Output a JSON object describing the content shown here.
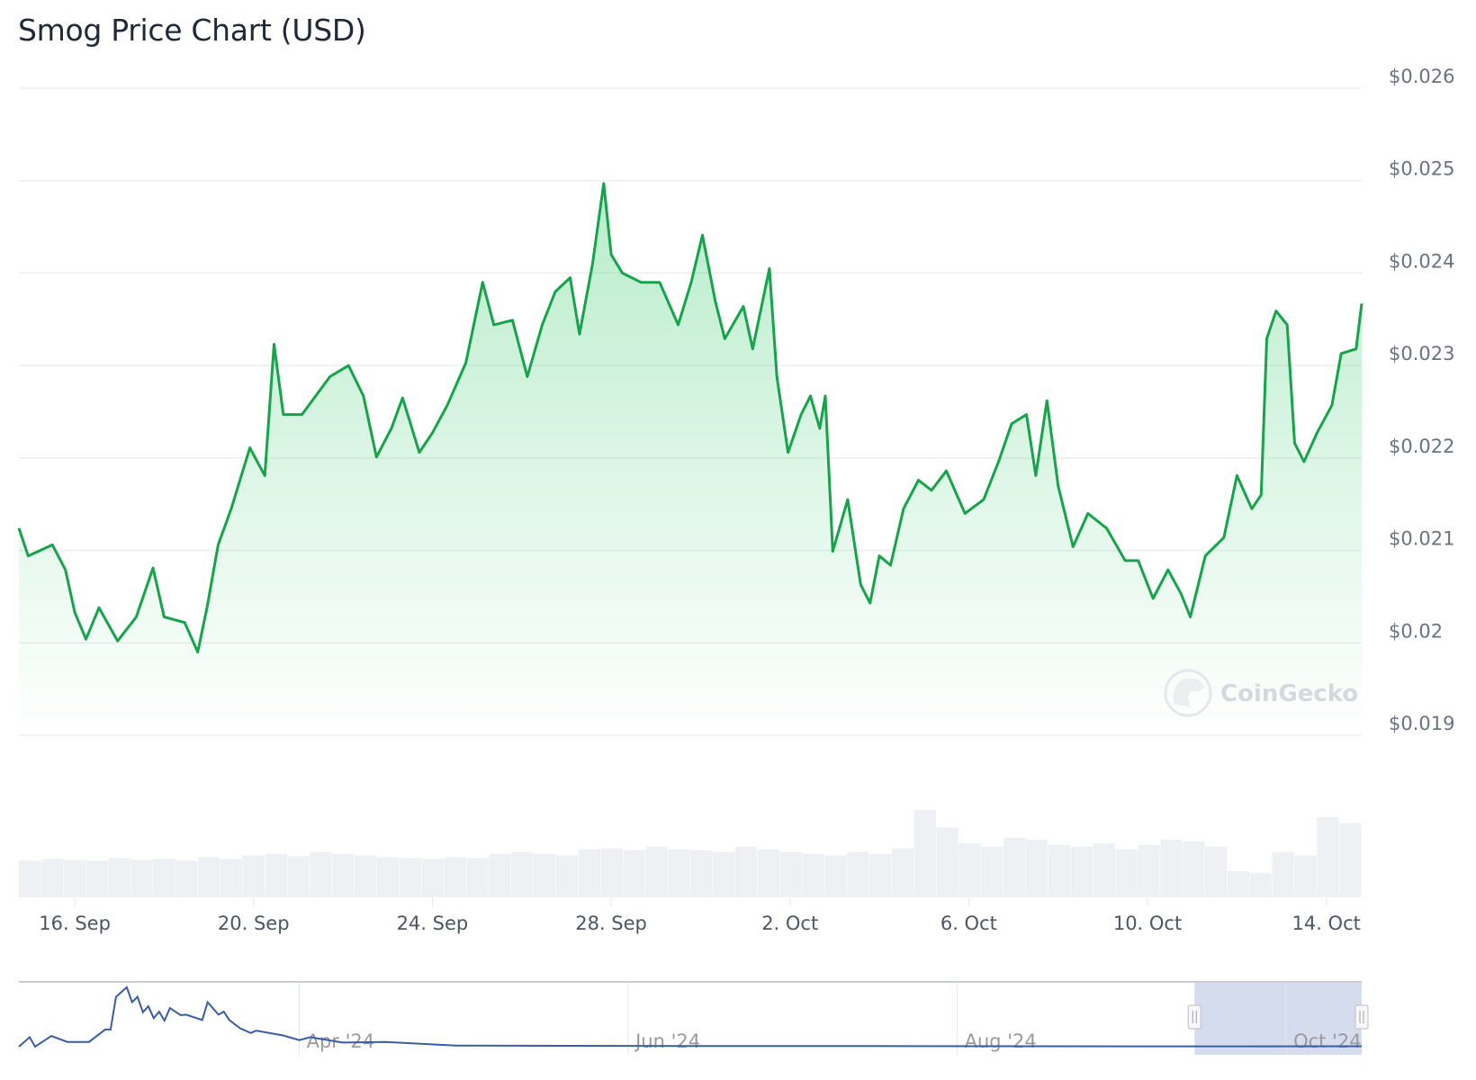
{
  "chart_data": {
    "type": "area",
    "title": "Smog Price Chart (USD)",
    "currency_prefix": "$",
    "ylim": [
      0.019,
      0.026
    ],
    "y_ticks": [
      "$0.026",
      "$0.025",
      "$0.024",
      "$0.023",
      "$0.022",
      "$0.021",
      "$0.02",
      "$0.019"
    ],
    "y_tick_values": [
      0.026,
      0.025,
      0.024,
      0.023,
      0.022,
      0.021,
      0.02,
      0.019
    ],
    "x_ticks": [
      {
        "label": "16. Sep",
        "date": "2024-09-16"
      },
      {
        "label": "20. Sep",
        "date": "2024-09-20"
      },
      {
        "label": "24. Sep",
        "date": "2024-09-24"
      },
      {
        "label": "28. Sep",
        "date": "2024-09-28"
      },
      {
        "label": "2. Oct",
        "date": "2024-10-02"
      },
      {
        "label": "6. Oct",
        "date": "2024-10-06"
      },
      {
        "label": "10. Oct",
        "date": "2024-10-10"
      },
      {
        "label": "14. Oct",
        "date": "2024-10-14"
      }
    ],
    "xlim": [
      "2024-09-14T18:00",
      "2024-10-14T19:00"
    ],
    "grid": "horizontal",
    "watermark": "CoinGecko",
    "colors": {
      "line": "#16a34a",
      "area": "#22c55e",
      "volume": "#eef0f4",
      "navigator_line": "#3a5ba8",
      "navigator_selection": "#c9d3ea"
    },
    "series": [
      {
        "points": [
          [
            "2024-09-14T18:00",
            0.02124
          ],
          [
            "2024-09-14T23:00",
            0.02094
          ],
          [
            "2024-09-15T12:00",
            0.02106
          ],
          [
            "2024-09-15T19:00",
            0.02079
          ],
          [
            "2024-09-16T00:00",
            0.02033
          ],
          [
            "2024-09-16T06:00",
            0.02004
          ],
          [
            "2024-09-16T13:00",
            0.02038
          ],
          [
            "2024-09-16T23:00",
            0.02002
          ],
          [
            "2024-09-17T09:00",
            0.02028
          ],
          [
            "2024-09-17T18:00",
            0.02081
          ],
          [
            "2024-09-18T00:00",
            0.02028
          ],
          [
            "2024-09-18T11:00",
            0.02022
          ],
          [
            "2024-09-18T18:00",
            0.0199
          ],
          [
            "2024-09-18T23:00",
            0.02038
          ],
          [
            "2024-09-19T05:00",
            0.02106
          ],
          [
            "2024-09-19T12:00",
            0.02145
          ],
          [
            "2024-09-19T22:00",
            0.02211
          ],
          [
            "2024-09-20T06:00",
            0.02181
          ],
          [
            "2024-09-20T11:00",
            0.02323
          ],
          [
            "2024-09-20T16:00",
            0.02247
          ],
          [
            "2024-09-21T02:00",
            0.02247
          ],
          [
            "2024-09-21T17:00",
            0.02288
          ],
          [
            "2024-09-22T03:00",
            0.023
          ],
          [
            "2024-09-22T11:00",
            0.02267
          ],
          [
            "2024-09-22T18:00",
            0.02201
          ],
          [
            "2024-09-23T02:00",
            0.02232
          ],
          [
            "2024-09-23T08:00",
            0.02265
          ],
          [
            "2024-09-23T17:00",
            0.02206
          ],
          [
            "2024-09-24T00:00",
            0.02227
          ],
          [
            "2024-09-24T08:00",
            0.02257
          ],
          [
            "2024-09-24T18:00",
            0.02303
          ],
          [
            "2024-09-25T03:00",
            0.0239
          ],
          [
            "2024-09-25T09:00",
            0.02344
          ],
          [
            "2024-09-25T19:00",
            0.02349
          ],
          [
            "2024-09-26T03:00",
            0.02288
          ],
          [
            "2024-09-26T11:00",
            0.02344
          ],
          [
            "2024-09-26T18:00",
            0.0238
          ],
          [
            "2024-09-27T02:00",
            0.02395
          ],
          [
            "2024-09-27T07:00",
            0.02334
          ],
          [
            "2024-09-27T14:00",
            0.0241
          ],
          [
            "2024-09-27T20:00",
            0.02497
          ],
          [
            "2024-09-28T00:00",
            0.0242
          ],
          [
            "2024-09-28T06:00",
            0.024
          ],
          [
            "2024-09-28T16:00",
            0.0239
          ],
          [
            "2024-09-29T02:00",
            0.0239
          ],
          [
            "2024-09-29T12:00",
            0.02344
          ],
          [
            "2024-09-29T19:00",
            0.0239
          ],
          [
            "2024-09-30T01:00",
            0.02441
          ],
          [
            "2024-09-30T08:00",
            0.02369
          ],
          [
            "2024-09-30T13:00",
            0.02329
          ],
          [
            "2024-09-30T23:00",
            0.02364
          ],
          [
            "2024-10-01T04:00",
            0.02318
          ],
          [
            "2024-10-01T13:00",
            0.02405
          ],
          [
            "2024-10-01T17:00",
            0.02288
          ],
          [
            "2024-10-01T23:00",
            0.02206
          ],
          [
            "2024-10-02T06:00",
            0.02247
          ],
          [
            "2024-10-02T11:00",
            0.02267
          ],
          [
            "2024-10-02T16:00",
            0.02232
          ],
          [
            "2024-10-02T19:00",
            0.02267
          ],
          [
            "2024-10-02T23:00",
            0.02099
          ],
          [
            "2024-10-03T07:00",
            0.02155
          ],
          [
            "2024-10-03T14:00",
            0.02063
          ],
          [
            "2024-10-03T19:00",
            0.02043
          ],
          [
            "2024-10-04T00:00",
            0.02094
          ],
          [
            "2024-10-04T06:00",
            0.02084
          ],
          [
            "2024-10-04T13:00",
            0.02145
          ],
          [
            "2024-10-04T21:00",
            0.02176
          ],
          [
            "2024-10-05T04:00",
            0.02165
          ],
          [
            "2024-10-05T12:00",
            0.02186
          ],
          [
            "2024-10-05T22:00",
            0.0214
          ],
          [
            "2024-10-06T08:00",
            0.02155
          ],
          [
            "2024-10-06T16:00",
            0.02196
          ],
          [
            "2024-10-06T23:00",
            0.02237
          ],
          [
            "2024-10-07T07:00",
            0.02247
          ],
          [
            "2024-10-07T12:00",
            0.02181
          ],
          [
            "2024-10-07T18:00",
            0.02262
          ],
          [
            "2024-10-08T00:00",
            0.0217
          ],
          [
            "2024-10-08T08:00",
            0.02104
          ],
          [
            "2024-10-08T16:00",
            0.0214
          ],
          [
            "2024-10-09T02:00",
            0.02124
          ],
          [
            "2024-10-09T12:00",
            0.02089
          ],
          [
            "2024-10-09T19:00",
            0.02089
          ],
          [
            "2024-10-10T03:00",
            0.02048
          ],
          [
            "2024-10-10T11:00",
            0.02079
          ],
          [
            "2024-10-10T18:00",
            0.02053
          ],
          [
            "2024-10-10T23:00",
            0.02028
          ],
          [
            "2024-10-11T07:00",
            0.02094
          ],
          [
            "2024-10-11T17:00",
            0.02114
          ],
          [
            "2024-10-12T00:00",
            0.02181
          ],
          [
            "2024-10-12T08:00",
            0.02145
          ],
          [
            "2024-10-12T13:00",
            0.0216
          ],
          [
            "2024-10-12T16:00",
            0.02329
          ],
          [
            "2024-10-12T21:00",
            0.02359
          ],
          [
            "2024-10-13T03:00",
            0.02344
          ],
          [
            "2024-10-13T07:00",
            0.02216
          ],
          [
            "2024-10-13T12:00",
            0.02196
          ],
          [
            "2024-10-13T19:00",
            0.02227
          ],
          [
            "2024-10-14T03:00",
            0.02257
          ],
          [
            "2024-10-14T08:00",
            0.02313
          ],
          [
            "2024-10-14T16:00",
            0.02318
          ],
          [
            "2024-10-14T19:00",
            0.02367
          ]
        ]
      }
    ],
    "volume_relative": [
      0.42,
      0.44,
      0.43,
      0.42,
      0.45,
      0.43,
      0.44,
      0.42,
      0.46,
      0.44,
      0.48,
      0.5,
      0.47,
      0.52,
      0.5,
      0.48,
      0.46,
      0.45,
      0.44,
      0.46,
      0.45,
      0.5,
      0.52,
      0.5,
      0.48,
      0.55,
      0.56,
      0.54,
      0.58,
      0.55,
      0.54,
      0.52,
      0.58,
      0.55,
      0.52,
      0.5,
      0.48,
      0.52,
      0.5,
      0.56,
      1.0,
      0.8,
      0.62,
      0.58,
      0.68,
      0.66,
      0.6,
      0.58,
      0.62,
      0.55,
      0.6,
      0.66,
      0.64,
      0.58,
      0.3,
      0.28,
      0.52,
      0.48,
      0.92,
      0.85
    ],
    "navigator": {
      "x_ticks": [
        {
          "label": "Apr '24",
          "date": "2024-04-01"
        },
        {
          "label": "Jun '24",
          "date": "2024-06-01"
        },
        {
          "label": "Aug '24",
          "date": "2024-08-01"
        },
        {
          "label": "Oct '24",
          "date": "2024-10-01"
        }
      ],
      "xlim": [
        "2024-02-09",
        "2024-10-15"
      ],
      "selected_range": [
        "2024-09-14T18:00",
        "2024-10-14T19:00"
      ],
      "values_relative": [
        [
          "2024-02-09",
          0.0
        ],
        [
          "2024-02-11",
          0.16
        ],
        [
          "2024-02-12",
          0.0
        ],
        [
          "2024-02-15",
          0.18
        ],
        [
          "2024-02-18",
          0.08
        ],
        [
          "2024-02-22",
          0.08
        ],
        [
          "2024-02-25",
          0.29
        ],
        [
          "2024-02-26",
          0.29
        ],
        [
          "2024-02-27",
          0.84
        ],
        [
          "2024-02-29",
          1.0
        ],
        [
          "2024-03-01",
          0.75
        ],
        [
          "2024-03-02",
          0.84
        ],
        [
          "2024-03-03",
          0.58
        ],
        [
          "2024-03-04",
          0.68
        ],
        [
          "2024-03-05",
          0.48
        ],
        [
          "2024-03-06",
          0.59
        ],
        [
          "2024-03-07",
          0.44
        ],
        [
          "2024-03-08",
          0.65
        ],
        [
          "2024-03-10",
          0.53
        ],
        [
          "2024-03-11",
          0.54
        ],
        [
          "2024-03-14",
          0.45
        ],
        [
          "2024-03-15",
          0.75
        ],
        [
          "2024-03-17",
          0.54
        ],
        [
          "2024-03-18",
          0.59
        ],
        [
          "2024-03-19",
          0.45
        ],
        [
          "2024-03-21",
          0.31
        ],
        [
          "2024-03-23",
          0.23
        ],
        [
          "2024-03-24",
          0.27
        ],
        [
          "2024-03-29",
          0.19
        ],
        [
          "2024-04-01",
          0.11
        ],
        [
          "2024-04-03",
          0.16
        ],
        [
          "2024-04-09",
          0.07
        ],
        [
          "2024-04-17",
          0.08
        ],
        [
          "2024-04-30",
          0.02
        ],
        [
          "2024-05-20",
          0.015
        ],
        [
          "2024-06-15",
          0.01
        ],
        [
          "2024-07-15",
          0.01
        ],
        [
          "2024-08-15",
          0.008
        ],
        [
          "2024-09-15",
          0.006
        ],
        [
          "2024-10-15",
          0.008
        ]
      ]
    }
  }
}
